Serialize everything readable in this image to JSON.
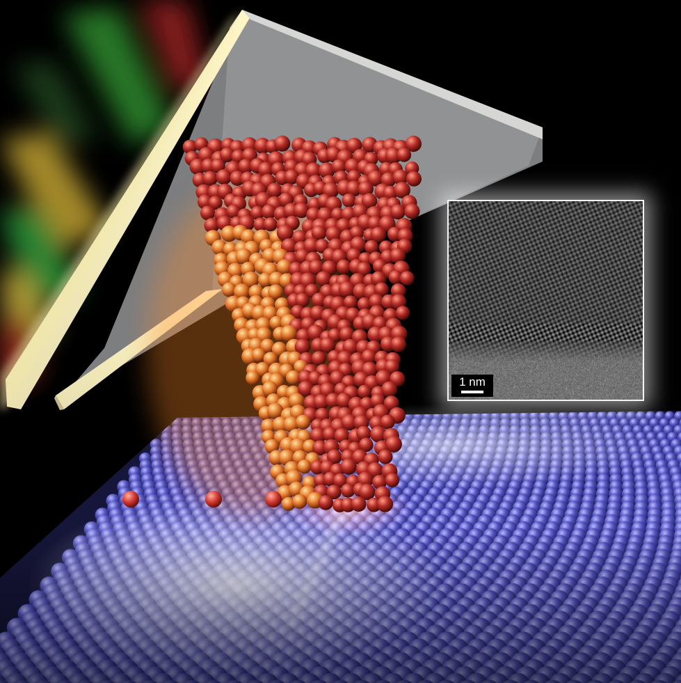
{
  "inset": {
    "scale_label": "1 nm"
  },
  "colors": {
    "background": "#000000",
    "cantilever": "#a9aaac",
    "tip_atoms": "#a02a24",
    "tip_atoms_glow": "#f08a30",
    "substrate_atoms": "#4a4ab0",
    "adatoms": "#d23a32",
    "inset_border": "#f4f4f4"
  }
}
